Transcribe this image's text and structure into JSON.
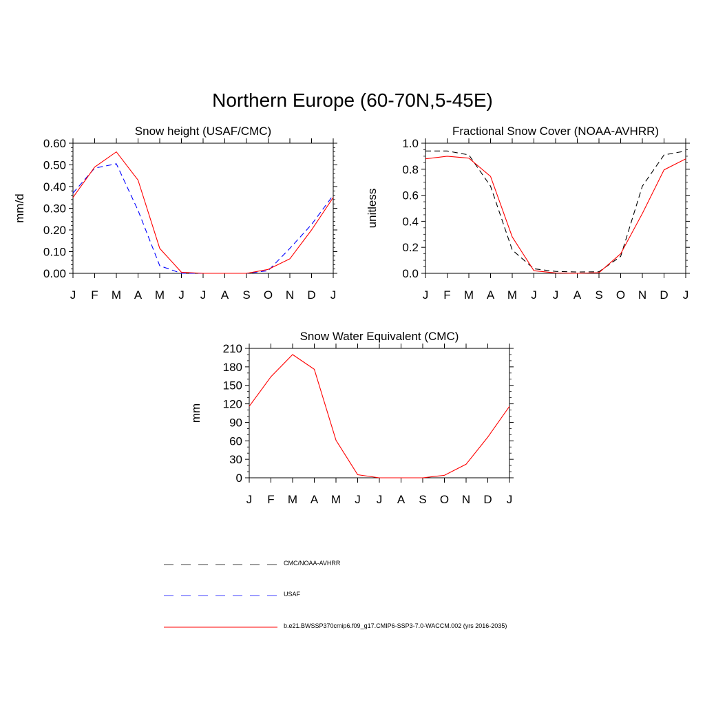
{
  "title": "Northern Europe (60-70N,5-45E)",
  "legend": [
    {
      "label": "CMC/NOAA-AVHRR",
      "color": "#000000",
      "dash": "dashed"
    },
    {
      "label": "USAF",
      "color": "#0000ff",
      "dash": "dashed"
    },
    {
      "label": "b.e21.BWSSP370cmip6.f09_g17.CMIP6-SSP3-7.0-WACCM.002 (yrs 2016-2035)",
      "color": "#ff0000",
      "dash": "solid"
    }
  ],
  "chart_data": [
    {
      "type": "line",
      "title": "Snow height (USAF/CMC)",
      "ylabel": "mm/d",
      "xlabel": "",
      "categories": [
        "J",
        "F",
        "M",
        "A",
        "M",
        "J",
        "J",
        "A",
        "S",
        "O",
        "N",
        "D",
        "J"
      ],
      "ylim": [
        0,
        0.6
      ],
      "yticks": [
        "0.00",
        "0.10",
        "0.20",
        "0.30",
        "0.40",
        "0.50",
        "0.60"
      ],
      "series": [
        {
          "name": "CMC/NOAA-AVHRR",
          "color": "#000000",
          "dash": "dashed",
          "values": [
            0,
            0,
            0,
            0,
            0,
            0,
            0,
            0,
            0,
            0,
            0,
            0,
            0
          ]
        },
        {
          "name": "USAF",
          "color": "#0000ff",
          "dash": "dashed",
          "values": [
            0.37,
            0.485,
            0.505,
            0.29,
            0.035,
            0.0,
            0.0,
            0.0,
            0.0,
            0.012,
            0.115,
            0.225,
            0.36
          ]
        },
        {
          "name": "b.e21.BWSSP370cmip6.f09_g17.CMIP6-SSP3-7.0-WACCM.002 (yrs 2016-2035)",
          "color": "#ff0000",
          "dash": "solid",
          "values": [
            0.35,
            0.49,
            0.56,
            0.43,
            0.115,
            0.005,
            0.0,
            0.0,
            0.0,
            0.018,
            0.067,
            0.2,
            0.35
          ]
        }
      ]
    },
    {
      "type": "line",
      "title": "Fractional Snow Cover (NOAA-AVHRR)",
      "ylabel": "unitless",
      "xlabel": "",
      "categories": [
        "J",
        "F",
        "M",
        "A",
        "M",
        "J",
        "J",
        "A",
        "S",
        "O",
        "N",
        "D",
        "J"
      ],
      "ylim": [
        0,
        1.0
      ],
      "yticks": [
        "0.0",
        "0.2",
        "0.4",
        "0.6",
        "0.8",
        "1.0"
      ],
      "series": [
        {
          "name": "CMC/NOAA-AVHRR",
          "color": "#000000",
          "dash": "dashed",
          "values": [
            0.94,
            0.94,
            0.91,
            0.67,
            0.18,
            0.035,
            0.015,
            0.01,
            0.012,
            0.13,
            0.67,
            0.91,
            0.94
          ]
        },
        {
          "name": "b.e21.BWSSP370cmip6.f09_g17.CMIP6-SSP3-7.0-WACCM.002 (yrs 2016-2035)",
          "color": "#ff0000",
          "dash": "solid",
          "values": [
            0.88,
            0.9,
            0.885,
            0.745,
            0.28,
            0.02,
            0.003,
            0.0,
            0.005,
            0.15,
            0.46,
            0.795,
            0.88
          ]
        }
      ]
    },
    {
      "type": "line",
      "title": "Snow Water Equivalent (CMC)",
      "ylabel": "mm",
      "xlabel": "",
      "categories": [
        "J",
        "F",
        "M",
        "A",
        "M",
        "J",
        "J",
        "A",
        "S",
        "O",
        "N",
        "D",
        "J"
      ],
      "ylim": [
        0,
        210
      ],
      "yticks": [
        "0",
        "30",
        "60",
        "90",
        "120",
        "150",
        "180",
        "210"
      ],
      "series": [
        {
          "name": "CMC/NOAA-AVHRR",
          "color": "#000000",
          "dash": "dashed",
          "values": [
            0,
            0,
            0,
            0,
            0,
            0,
            0,
            0,
            0,
            0,
            0,
            0,
            0
          ]
        },
        {
          "name": "b.e21.BWSSP370cmip6.f09_g17.CMIP6-SSP3-7.0-WACCM.002 (yrs 2016-2035)",
          "color": "#ff0000",
          "dash": "solid",
          "values": [
            116,
            164,
            200,
            176,
            61,
            5,
            0,
            0,
            0,
            4,
            22,
            66,
            116
          ]
        }
      ]
    }
  ]
}
